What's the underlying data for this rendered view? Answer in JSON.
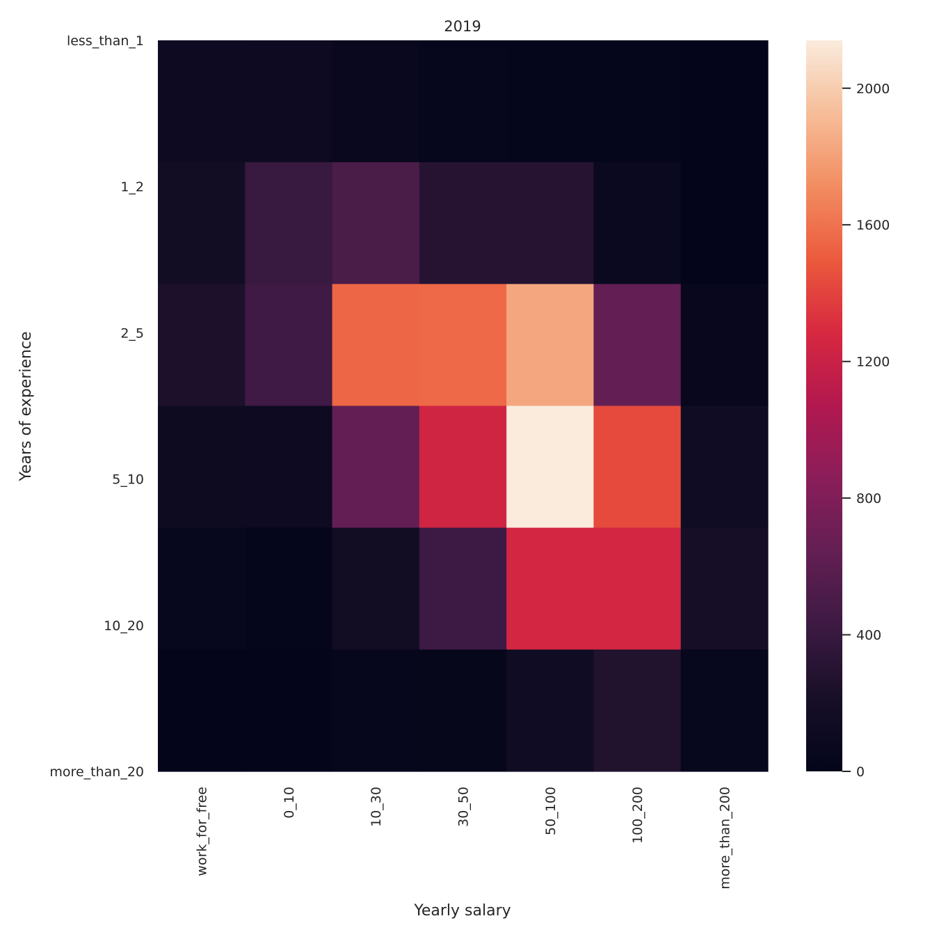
{
  "chart_data": {
    "type": "heatmap",
    "title": "2019",
    "xlabel": "Yearly salary",
    "ylabel": "Years of experience",
    "x_categories": [
      "work_for_free",
      "0_10",
      "10_30",
      "30_50",
      "50_100",
      "100_200",
      "more_than_200"
    ],
    "y_categories": [
      "less_than_1",
      "1_2",
      "2_5",
      "5_10",
      "10_20",
      "more_than_20"
    ],
    "values": [
      [
        110,
        115,
        60,
        35,
        25,
        25,
        10
      ],
      [
        170,
        400,
        500,
        300,
        300,
        80,
        10
      ],
      [
        240,
        440,
        1550,
        1560,
        1830,
        640,
        50
      ],
      [
        120,
        110,
        640,
        1240,
        2140,
        1430,
        140
      ],
      [
        45,
        25,
        170,
        430,
        1260,
        1260,
        190
      ],
      [
        10,
        10,
        30,
        40,
        140,
        270,
        45
      ]
    ],
    "colorbar": {
      "min": 0,
      "max": 2140,
      "ticks": [
        0,
        400,
        800,
        1200,
        1600,
        2000
      ],
      "colormap": "rocket"
    }
  }
}
